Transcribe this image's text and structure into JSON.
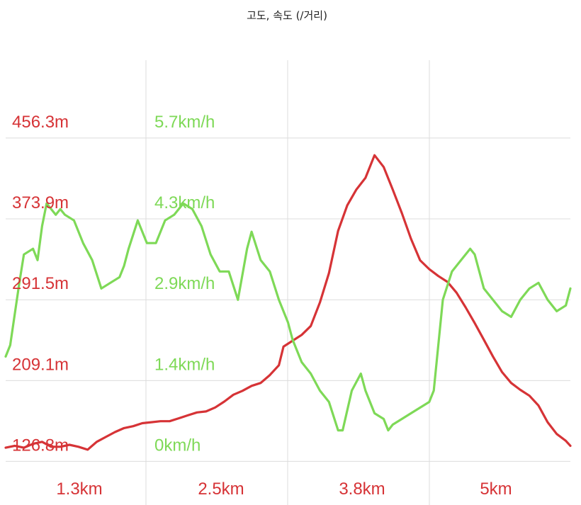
{
  "chart_data": {
    "type": "line",
    "title": "고도, 속도 (/거리)",
    "colors": {
      "altitude": "#d63336",
      "speed": "#7ed957",
      "grid": "#dcdcdc"
    },
    "grid": true,
    "x_tick_labels": [
      "1.3km",
      "2.5km",
      "3.8km",
      "5km"
    ],
    "x_ticks_km": [
      1.3,
      2.5,
      3.8,
      5.0
    ],
    "xlim_km": [
      0.0,
      6.2
    ],
    "y_left": {
      "tick_labels": [
        "456.3m",
        "373.9m",
        "291.5m",
        "209.1m",
        "126.8m"
      ],
      "ticks": [
        456.3,
        373.9,
        291.5,
        209.1,
        126.8
      ],
      "ylim": [
        117.0,
        480.0
      ]
    },
    "y_right": {
      "tick_labels": [
        "5.7km/h",
        "4.3km/h",
        "2.9km/h",
        "1.4km/h",
        "0km/h"
      ],
      "ticks": [
        5.7,
        4.3,
        2.9,
        1.4,
        0.0
      ],
      "ylim": [
        -0.28,
        6.0
      ]
    },
    "series": [
      {
        "key": "altitude",
        "axis": "left",
        "x": [
          0.0,
          0.1,
          0.2,
          0.3,
          0.4,
          0.5,
          0.6,
          0.7,
          0.8,
          0.9,
          1.0,
          1.1,
          1.2,
          1.3,
          1.4,
          1.5,
          1.6,
          1.7,
          1.8,
          1.9,
          2.0,
          2.1,
          2.2,
          2.3,
          2.4,
          2.5,
          2.6,
          2.7,
          2.8,
          2.9,
          3.0,
          3.05,
          3.15,
          3.25,
          3.35,
          3.45,
          3.55,
          3.65,
          3.75,
          3.85,
          3.95,
          4.05,
          4.15,
          4.25,
          4.35,
          4.45,
          4.55,
          4.65,
          4.75,
          4.85,
          4.95,
          5.05,
          5.15,
          5.25,
          5.35,
          5.45,
          5.55,
          5.65,
          5.75,
          5.85,
          5.95,
          6.05,
          6.15,
          6.2
        ],
        "y": [
          127,
          129,
          127,
          131,
          133,
          128,
          128,
          130,
          128,
          125,
          133,
          138,
          143,
          147,
          149,
          152,
          153,
          154,
          154,
          157,
          160,
          163,
          164,
          168,
          174,
          181,
          185,
          190,
          193,
          201,
          211,
          230,
          236,
          242,
          251,
          275,
          305,
          348,
          374,
          390,
          402,
          425,
          413,
          390,
          366,
          340,
          318,
          309,
          302,
          296,
          285,
          270,
          254,
          237,
          220,
          204,
          193,
          186,
          180,
          170,
          153,
          141,
          134,
          129
        ]
      },
      {
        "key": "speed",
        "axis": "right",
        "x": [
          0.0,
          0.05,
          0.15,
          0.2,
          0.3,
          0.35,
          0.4,
          0.45,
          0.55,
          0.6,
          0.65,
          0.75,
          0.85,
          0.95,
          1.05,
          1.15,
          1.25,
          1.3,
          1.35,
          1.45,
          1.55,
          1.65,
          1.75,
          1.85,
          1.95,
          2.05,
          2.15,
          2.25,
          2.35,
          2.45,
          2.55,
          2.65,
          2.7,
          2.8,
          2.9,
          3.0,
          3.1,
          3.15,
          3.25,
          3.35,
          3.45,
          3.55,
          3.65,
          3.7,
          3.8,
          3.9,
          3.95,
          4.05,
          4.15,
          4.2,
          4.25,
          4.35,
          4.45,
          4.55,
          4.65,
          4.7,
          4.8,
          4.9,
          5.0,
          5.1,
          5.15,
          5.25,
          5.35,
          5.45,
          5.55,
          5.65,
          5.75,
          5.85,
          5.95,
          6.05,
          6.15,
          6.2
        ],
        "y": [
          1.5,
          1.7,
          2.8,
          3.3,
          3.4,
          3.2,
          3.8,
          4.2,
          4.0,
          4.1,
          4.0,
          3.9,
          3.5,
          3.2,
          2.7,
          2.8,
          2.9,
          3.1,
          3.4,
          3.9,
          3.5,
          3.5,
          3.9,
          4.0,
          4.2,
          4.1,
          3.8,
          3.3,
          3.0,
          3.0,
          2.5,
          3.4,
          3.7,
          3.2,
          3.0,
          2.5,
          2.1,
          1.8,
          1.4,
          1.2,
          0.9,
          0.7,
          0.2,
          0.2,
          0.9,
          1.2,
          0.9,
          0.5,
          0.4,
          0.2,
          0.3,
          0.4,
          0.5,
          0.6,
          0.7,
          0.9,
          2.5,
          3.0,
          3.2,
          3.4,
          3.3,
          2.7,
          2.5,
          2.3,
          2.2,
          2.5,
          2.7,
          2.8,
          2.5,
          2.3,
          2.4,
          2.7
        ]
      }
    ]
  }
}
